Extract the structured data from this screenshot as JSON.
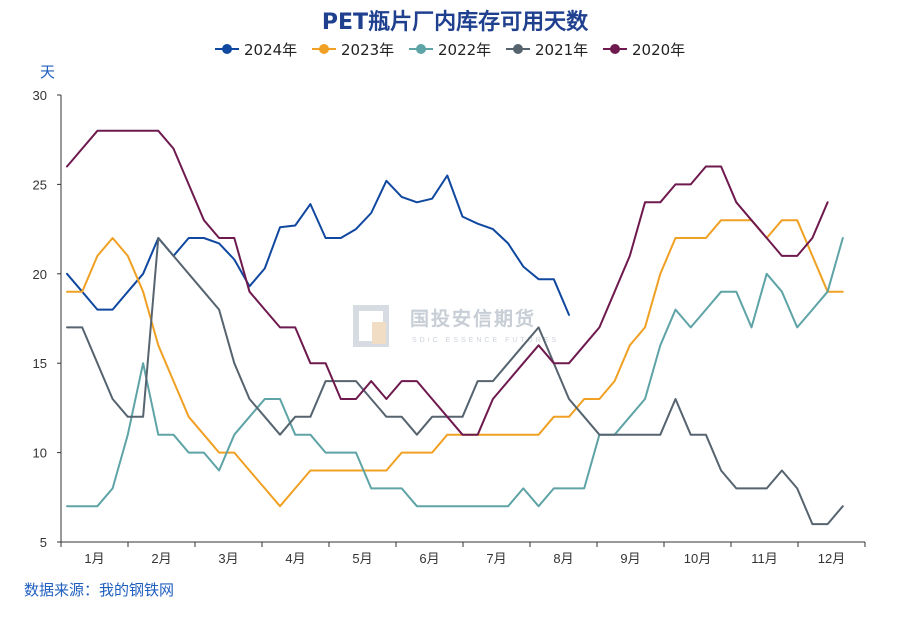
{
  "chart_data": {
    "type": "line",
    "title": "PET瓶片厂内库存可用天数",
    "ylabel": "天",
    "ylim": [
      5,
      30
    ],
    "yticks": [
      5,
      10,
      15,
      20,
      25,
      30
    ],
    "months": [
      "1月",
      "2月",
      "3月",
      "4月",
      "5月",
      "6月",
      "7月",
      "8月",
      "9月",
      "10月",
      "11月",
      "12月"
    ],
    "xlim": [
      1,
      53
    ],
    "series": [
      {
        "name": "2024年",
        "color": "#1048a0",
        "x": [
          1,
          2,
          3,
          4,
          5,
          6,
          7,
          8,
          9,
          10,
          11,
          12,
          13,
          14,
          15,
          16,
          17,
          18,
          19,
          20,
          21,
          22,
          23,
          24,
          25,
          26,
          27,
          28,
          29,
          30,
          31,
          32,
          33,
          34
        ],
        "y": [
          20,
          19,
          18,
          18,
          19,
          20,
          22,
          21,
          22,
          22,
          21.7,
          20.8,
          19.3,
          20.3,
          22.6,
          22.7,
          23.9,
          22,
          22,
          22.5,
          23.4,
          25.2,
          24.3,
          24,
          24.2,
          25.5,
          23.2,
          22.8,
          22.5,
          21.7,
          20.4,
          19.7,
          19.7,
          17.7
        ]
      },
      {
        "name": "2023年",
        "color": "#f0a023",
        "x": [
          1,
          2,
          3,
          4,
          5,
          6,
          7,
          8,
          9,
          10,
          11,
          12,
          13,
          14,
          15,
          16,
          17,
          18,
          19,
          20,
          21,
          22,
          23,
          24,
          25,
          26,
          27,
          28,
          29,
          30,
          31,
          32,
          33,
          34,
          35,
          36,
          37,
          38,
          39,
          40,
          41,
          42,
          43,
          44,
          45,
          46,
          47,
          48,
          49,
          50,
          51,
          52,
          53
        ],
        "y": [
          19,
          19,
          21,
          22,
          21,
          19,
          16,
          14,
          12,
          11,
          10,
          10,
          9,
          8,
          7,
          8,
          9,
          9,
          9,
          9,
          9,
          9,
          10,
          10,
          10,
          11,
          11,
          11,
          11,
          11,
          11,
          11,
          12,
          12,
          13,
          13,
          14,
          16,
          17,
          20,
          22,
          22,
          22,
          23,
          23,
          23,
          22,
          23,
          23,
          21,
          19,
          19,
          null
        ],
        "note": "points interpolated from the printed line"
      },
      {
        "name": "2022年",
        "color": "#5ea3a6",
        "x": [
          1,
          2,
          3,
          4,
          5,
          6,
          7,
          8,
          9,
          10,
          11,
          12,
          13,
          14,
          15,
          16,
          17,
          18,
          19,
          20,
          21,
          22,
          23,
          24,
          25,
          26,
          27,
          28,
          29,
          30,
          31,
          32,
          33,
          34,
          35,
          36,
          37,
          38,
          39,
          40,
          41,
          42,
          43,
          44,
          45,
          46,
          47,
          48,
          49,
          50,
          51,
          52,
          53
        ],
        "y": [
          7,
          7,
          7,
          8,
          11,
          15,
          11,
          11,
          10,
          10,
          9,
          11,
          12,
          13,
          13,
          11,
          11,
          10,
          10,
          10,
          8,
          8,
          8,
          7,
          7,
          7,
          7,
          7,
          7,
          7,
          8,
          7,
          8,
          8,
          8,
          11,
          11,
          12,
          13,
          16,
          18,
          17,
          18,
          19,
          19,
          17,
          20,
          19,
          17,
          18,
          19,
          22,
          null
        ]
      },
      {
        "name": "2021年",
        "color": "#566470",
        "x": [
          1,
          2,
          3,
          4,
          5,
          6,
          7,
          8,
          9,
          10,
          11,
          12,
          13,
          14,
          15,
          16,
          17,
          18,
          19,
          20,
          21,
          22,
          23,
          24,
          25,
          26,
          27,
          28,
          29,
          30,
          31,
          32,
          33,
          34,
          35,
          36,
          37,
          38,
          39,
          40,
          41,
          42,
          43,
          44,
          45,
          46,
          47,
          48,
          49,
          50,
          51,
          52,
          53
        ],
        "y": [
          17,
          17,
          15,
          13,
          12,
          12,
          22,
          21,
          20,
          19,
          18,
          15,
          13,
          12,
          11,
          12,
          12,
          14,
          14,
          14,
          13,
          12,
          12,
          11,
          12,
          12,
          12,
          14,
          14,
          15,
          16,
          17,
          15,
          13,
          12,
          11,
          11,
          11,
          11,
          11,
          13,
          11,
          11,
          9,
          8,
          8,
          8,
          9,
          8,
          6,
          6,
          7,
          null
        ]
      },
      {
        "name": "2020年",
        "color": "#6e1a4e",
        "x": [
          1,
          2,
          3,
          4,
          5,
          6,
          7,
          8,
          9,
          10,
          11,
          12,
          13,
          14,
          15,
          16,
          17,
          18,
          19,
          20,
          21,
          22,
          23,
          24,
          25,
          26,
          27,
          28,
          29,
          30,
          31,
          32,
          33,
          34,
          35,
          36,
          37,
          38,
          39,
          40,
          41,
          42,
          43,
          44,
          45,
          46,
          47,
          48,
          49,
          50,
          51,
          52,
          53
        ],
        "y": [
          26,
          27,
          28,
          28,
          28,
          28,
          28,
          27,
          25,
          23,
          22,
          22,
          19,
          18,
          17,
          17,
          15,
          15,
          13,
          13,
          14,
          13,
          14,
          14,
          13,
          12,
          11,
          11,
          13,
          14,
          15,
          16,
          15,
          15,
          16,
          17,
          19,
          21,
          24,
          24,
          25,
          25,
          26,
          26,
          24,
          23,
          22,
          21,
          21,
          22,
          24,
          null,
          null
        ]
      }
    ]
  },
  "legend": [
    "2024年",
    "2023年",
    "2022年",
    "2021年",
    "2020年"
  ],
  "watermark": {
    "name": "国投安信期货",
    "sub": "SDIC ESSENCE FUTURES"
  },
  "source": "数据来源：我的钢铁网"
}
